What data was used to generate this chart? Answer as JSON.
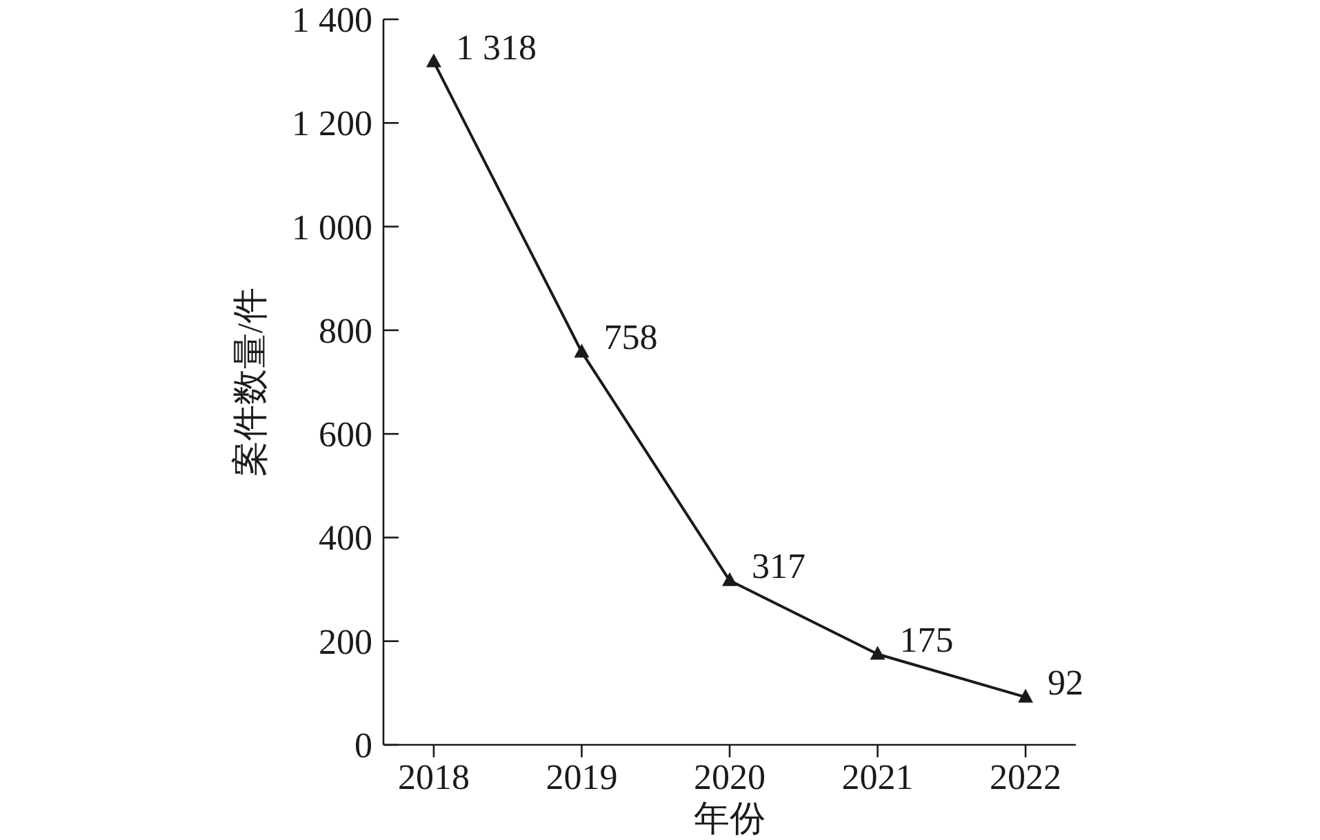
{
  "chart_data": {
    "type": "line",
    "xlabel": "年份",
    "ylabel": "案件数量/件",
    "categories": [
      "2018",
      "2019",
      "2020",
      "2021",
      "2022"
    ],
    "series": [
      {
        "color": "#1a1a1a",
        "values": [
          1318,
          758,
          317,
          175,
          92
        ],
        "value_labels": [
          "1 318",
          "758",
          "317",
          "175",
          "92"
        ]
      }
    ],
    "ylim": [
      0,
      1400
    ],
    "yticks": [
      0,
      200,
      400,
      600,
      800,
      {
        "value": 1000,
        "label": "1 000"
      },
      {
        "value": 1200,
        "label": "1 200"
      },
      {
        "value": 1400,
        "label": "1 400"
      }
    ],
    "marker": "triangle",
    "line_style": "solid"
  }
}
